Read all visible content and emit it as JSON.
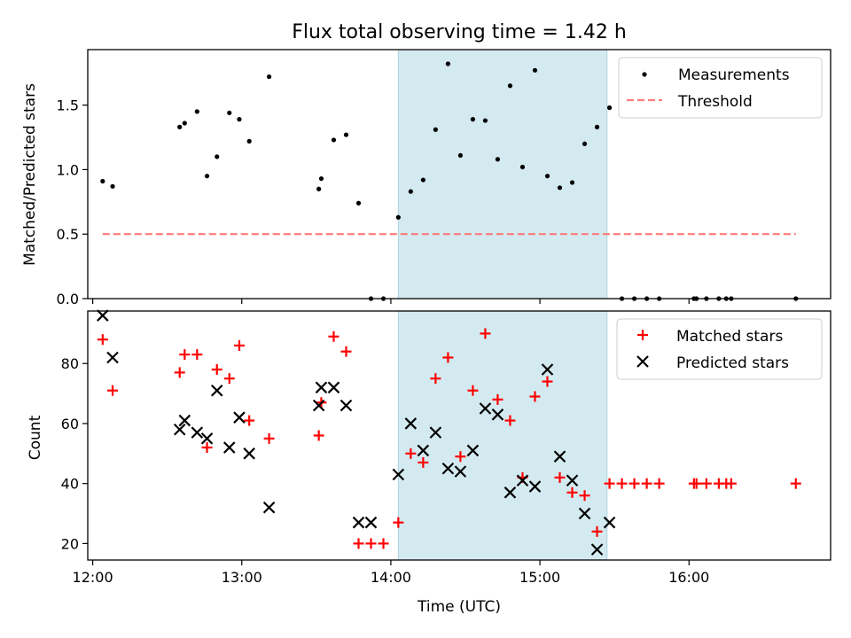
{
  "chart_data": {
    "type": "scatter",
    "title": "Flux total observing time = 1.42 h",
    "xlabel": "Time (UTC)",
    "x_tick_labels": [
      "12:00",
      "13:00",
      "14:00",
      "15:00",
      "16:00"
    ],
    "x_ticks": [
      "12:00",
      "13:00",
      "14:00",
      "15:00",
      "16:00"
    ],
    "xlim": [
      "11:58",
      "16:57"
    ],
    "shaded_interval": [
      "14:03",
      "15:27"
    ],
    "shade_color": "#d3eaf0",
    "panels": [
      {
        "ylabel": "Matched/Predicted stars",
        "ylim": [
          0,
          1.93
        ],
        "y_ticks": [
          0.0,
          0.5,
          1.0,
          1.5
        ],
        "y_tick_labels": [
          "0.0",
          "0.5",
          "1.0",
          "1.5"
        ],
        "legend_position": "upper right",
        "series": [
          {
            "name": "Measurements",
            "marker": "dot",
            "color": "#000000",
            "x": [
              "12:04",
              "12:08",
              "12:35",
              "12:37",
              "12:42",
              "12:46",
              "12:50",
              "12:55",
              "12:59",
              "13:03",
              "13:11",
              "13:31",
              "13:32",
              "13:37",
              "13:42",
              "13:47",
              "13:52",
              "13:57",
              "14:03",
              "14:08",
              "14:13",
              "14:18",
              "14:23",
              "14:28",
              "14:33",
              "14:38",
              "14:43",
              "14:48",
              "14:53",
              "14:58",
              "15:03",
              "15:08",
              "15:13",
              "15:18",
              "15:23",
              "15:28",
              "15:33",
              "15:38",
              "15:43",
              "15:48",
              "16:02",
              "16:03",
              "16:07",
              "16:12",
              "16:15",
              "16:17",
              "16:43"
            ],
            "y": [
              0.91,
              0.87,
              1.33,
              1.36,
              1.45,
              0.95,
              1.1,
              1.44,
              1.39,
              1.22,
              1.72,
              0.85,
              0.93,
              1.23,
              1.27,
              0.74,
              0.0,
              0.0,
              0.63,
              0.83,
              0.92,
              1.31,
              1.82,
              1.11,
              1.39,
              1.38,
              1.08,
              1.65,
              1.02,
              1.77,
              0.95,
              0.86,
              0.9,
              1.2,
              1.33,
              1.48,
              0.0,
              0.0,
              0.0,
              0.0,
              0.0,
              0.0,
              0.0,
              0.0,
              0.0,
              0.0,
              0.0
            ]
          },
          {
            "name": "Threshold",
            "style": "dashed-line",
            "color": "#ff7b7b",
            "x": [
              "12:04",
              "16:43"
            ],
            "y": [
              0.5,
              0.5
            ]
          }
        ]
      },
      {
        "ylabel": "Count",
        "ylim": [
          14.5,
          97.5
        ],
        "y_ticks": [
          20,
          40,
          60,
          80
        ],
        "y_tick_labels": [
          "20",
          "40",
          "60",
          "80"
        ],
        "legend_position": "upper right",
        "series": [
          {
            "name": "Matched stars",
            "marker": "plus",
            "color": "#ff0000",
            "x": [
              "12:04",
              "12:08",
              "12:35",
              "12:37",
              "12:42",
              "12:46",
              "12:50",
              "12:55",
              "12:59",
              "13:03",
              "13:11",
              "13:31",
              "13:32",
              "13:37",
              "13:42",
              "13:47",
              "13:52",
              "13:57",
              "14:03",
              "14:08",
              "14:13",
              "14:18",
              "14:23",
              "14:28",
              "14:33",
              "14:38",
              "14:43",
              "14:48",
              "14:53",
              "14:58",
              "15:03",
              "15:08",
              "15:13",
              "15:18",
              "15:23",
              "15:28",
              "15:33",
              "15:38",
              "15:43",
              "15:48",
              "16:02",
              "16:03",
              "16:07",
              "16:12",
              "16:15",
              "16:17",
              "16:43"
            ],
            "y": [
              88,
              71,
              77,
              83,
              83,
              52,
              78,
              75,
              86,
              61,
              55,
              56,
              67,
              89,
              84,
              20,
              20,
              20,
              27,
              50,
              47,
              75,
              82,
              49,
              71,
              90,
              68,
              61,
              42,
              69,
              74,
              42,
              37,
              36,
              24,
              40,
              40,
              40,
              40,
              40,
              40,
              40,
              40,
              40,
              40,
              40,
              40
            ]
          },
          {
            "name": "Predicted stars",
            "marker": "x",
            "color": "#000000",
            "x": [
              "12:04",
              "12:08",
              "12:35",
              "12:37",
              "12:42",
              "12:46",
              "12:50",
              "12:55",
              "12:59",
              "13:03",
              "13:11",
              "13:31",
              "13:32",
              "13:37",
              "13:42",
              "13:47",
              "13:52",
              "14:03",
              "14:08",
              "14:13",
              "14:18",
              "14:23",
              "14:28",
              "14:33",
              "14:38",
              "14:43",
              "14:48",
              "14:53",
              "14:58",
              "15:03",
              "15:08",
              "15:13",
              "15:18",
              "15:23",
              "15:28"
            ],
            "y": [
              96,
              82,
              58,
              61,
              57,
              55,
              71,
              52,
              62,
              50,
              32,
              66,
              72,
              72,
              66,
              27,
              27,
              43,
              60,
              51,
              57,
              45,
              44,
              51,
              65,
              63,
              37,
              41,
              39,
              78,
              49,
              41,
              30,
              18,
              27
            ]
          }
        ]
      }
    ]
  }
}
